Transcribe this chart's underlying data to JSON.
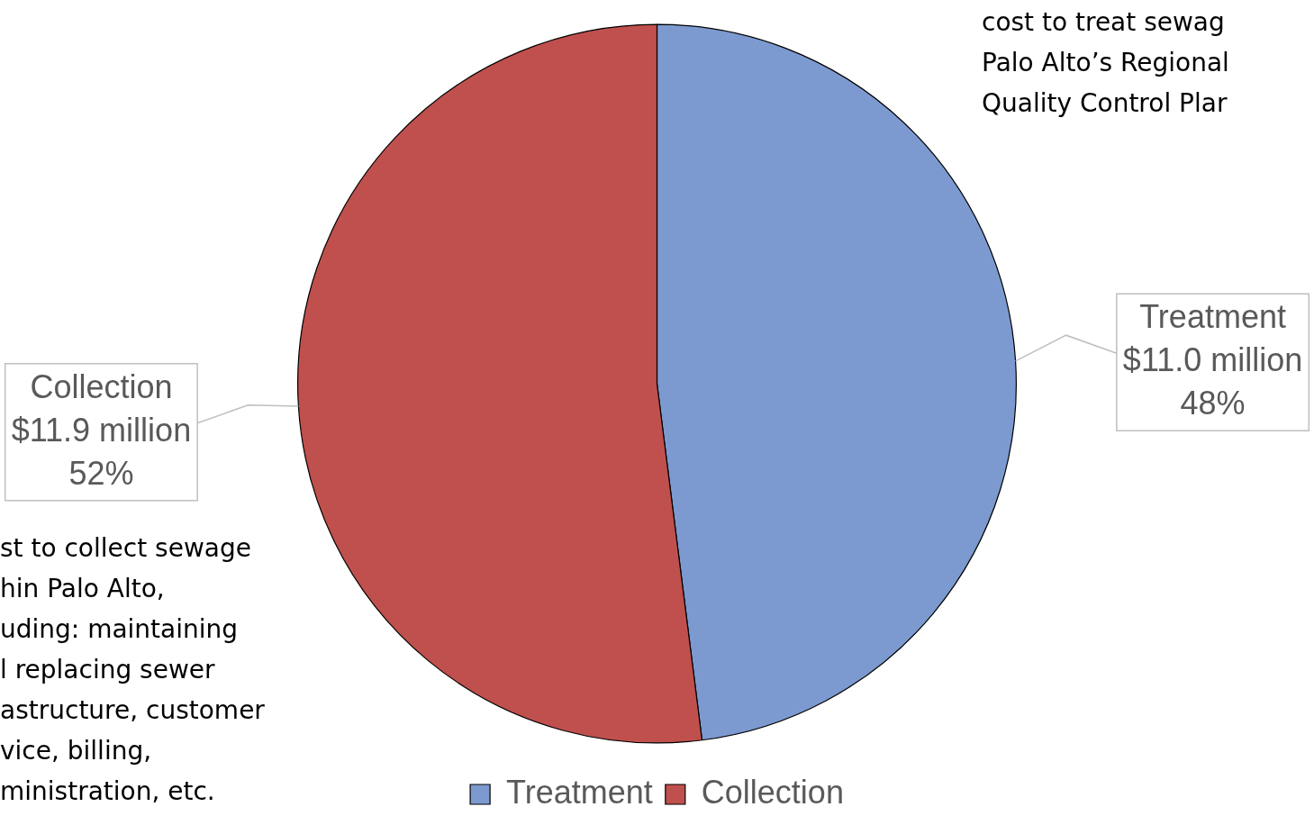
{
  "chart_data": {
    "type": "pie",
    "categories": [
      "Treatment",
      "Collection"
    ],
    "values": [
      48,
      52
    ],
    "value_labels": [
      "$11.0 million\n48%",
      "$11.9 million\n52%"
    ],
    "colors": [
      "#7c9ad0",
      "#c0504d"
    ],
    "legend": "bottom",
    "annotations": [
      "cost to treat sewag\nPalo Alto’s Regional\nQuality Control Plar",
      "st to collect sewage\nhin Palo Alto,\nuding: maintaining\nl replacing sewer\nastructure, customer\nvice, billing,\nministration, etc."
    ]
  }
}
